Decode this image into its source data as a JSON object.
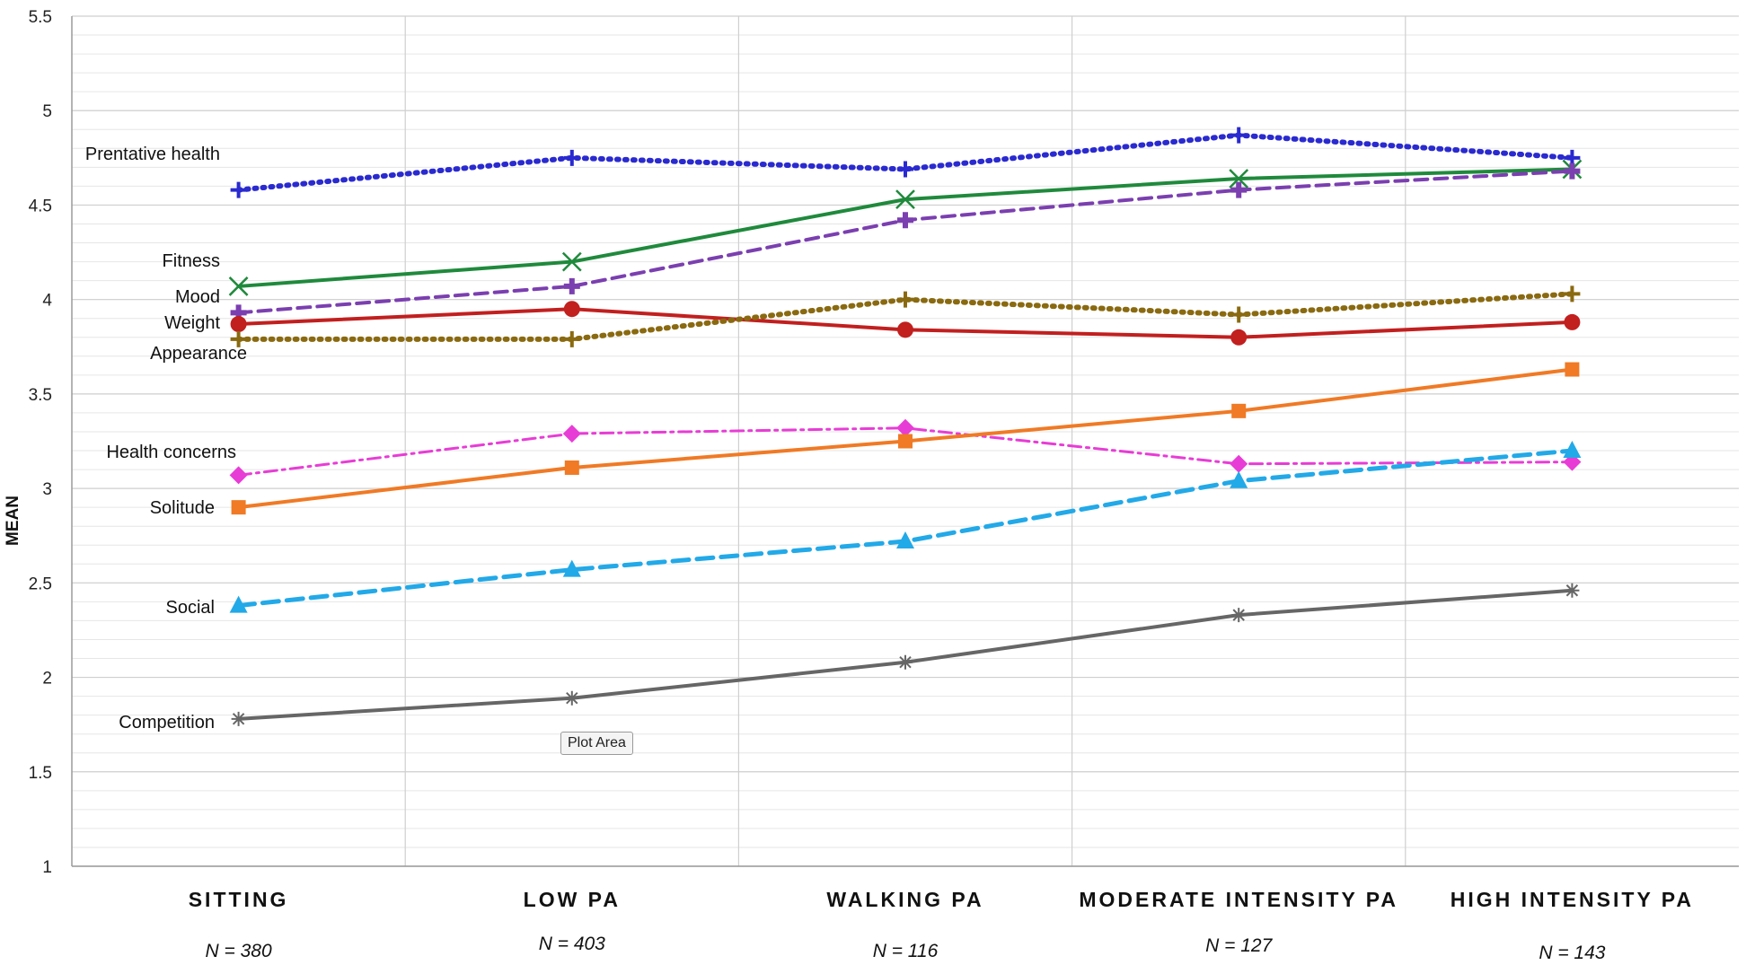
{
  "tooltip": "Plot Area",
  "chart_data": {
    "type": "line",
    "ylabel": "MEAN",
    "ylim": [
      1,
      5.5
    ],
    "ytick_step": 0.5,
    "ytick_labels": [
      "1",
      "1.5",
      "2",
      "2.5",
      "3",
      "3.5",
      "4",
      "4.5",
      "5",
      "5.5"
    ],
    "grid": true,
    "categories": [
      "SITTING",
      "LOW PA",
      "WALKING PA",
      "MODERATE INTENSITY PA",
      "HIGH INTENSITY PA"
    ],
    "n_labels": [
      "N = 380",
      "N = 403",
      "N = 116",
      "N = 127",
      "N = 143"
    ],
    "series": [
      {
        "name": "Prentative health",
        "values": [
          4.58,
          4.75,
          4.69,
          4.87,
          4.75
        ],
        "color": "#2a2ad0",
        "dash": "dotted",
        "marker": "plus"
      },
      {
        "name": "Fitness",
        "values": [
          4.07,
          4.2,
          4.53,
          4.64,
          4.69
        ],
        "color": "#1f8a3c",
        "dash": "solid",
        "marker": "x"
      },
      {
        "name": "Mood",
        "values": [
          3.93,
          4.07,
          4.42,
          4.58,
          4.68
        ],
        "color": "#7b3fb0",
        "dash": "dashed",
        "marker": "plus-bold"
      },
      {
        "name": "Weight",
        "values": [
          3.87,
          3.95,
          3.84,
          3.8,
          3.88
        ],
        "color": "#c21f1f",
        "dash": "solid",
        "marker": "circle"
      },
      {
        "name": "Appearance",
        "values": [
          3.79,
          3.79,
          4.0,
          3.92,
          4.03
        ],
        "color": "#8a6a10",
        "dash": "dotted",
        "marker": "plus"
      },
      {
        "name": "Health concerns",
        "values": [
          3.07,
          3.29,
          3.32,
          3.13,
          3.14
        ],
        "color": "#e83cd6",
        "dash": "dashdot",
        "marker": "diamond"
      },
      {
        "name": "Solitude",
        "values": [
          2.9,
          3.11,
          3.25,
          3.41,
          3.63
        ],
        "color": "#f07a25",
        "dash": "solid",
        "marker": "square"
      },
      {
        "name": "Social",
        "values": [
          2.38,
          2.57,
          2.72,
          3.04,
          3.2
        ],
        "color": "#22a9e8",
        "dash": "longdash",
        "marker": "triangle"
      },
      {
        "name": "Competition",
        "values": [
          1.78,
          1.89,
          2.08,
          2.33,
          2.46
        ],
        "color": "#666666",
        "dash": "solid",
        "marker": "star"
      }
    ]
  }
}
